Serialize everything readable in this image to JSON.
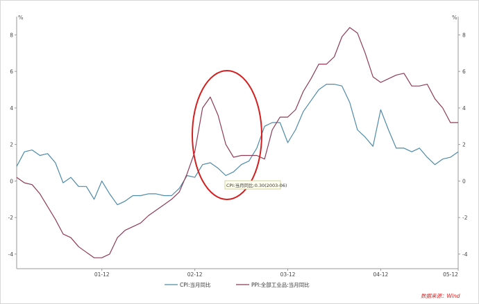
{
  "chart_data": {
    "type": "line",
    "y_unit_left": "%",
    "y_unit_right": "%",
    "ylim": [
      -4.8,
      9
    ],
    "yticks": [
      -4,
      -2,
      0,
      2,
      4,
      6,
      8
    ],
    "x_tick_labels": [
      "01-12",
      "02-12",
      "03-12",
      "04-12",
      "05-12"
    ],
    "grid": false,
    "legend_position": "bottom",
    "tooltip": "CPI:当月同比:0.30(2003-06)",
    "source_note": "数据来源：Wind",
    "colors": {
      "cpi": "#4e8aa9",
      "ppi": "#8e3a55",
      "ellipse": "#d31f1f",
      "source": "#e02020"
    },
    "series": [
      {
        "name": "CPI:当月同比",
        "values": [
          0.8,
          1.6,
          1.7,
          1.4,
          1.5,
          1.0,
          -0.1,
          0.2,
          -0.3,
          -0.3,
          -1.0,
          0.0,
          -0.7,
          -1.3,
          -1.1,
          -0.8,
          -0.8,
          -0.7,
          -0.7,
          -0.8,
          -0.8,
          -0.4,
          0.3,
          0.2,
          0.9,
          1.0,
          0.7,
          0.3,
          0.5,
          0.9,
          1.1,
          1.8,
          3.0,
          3.2,
          3.2,
          2.1,
          2.8,
          3.8,
          4.4,
          5.0,
          5.3,
          5.3,
          5.2,
          4.3,
          2.8,
          2.4,
          1.9,
          3.9,
          2.8,
          1.8,
          1.8,
          1.6,
          1.8,
          1.3,
          0.9,
          1.2,
          1.3,
          1.6
        ]
      },
      {
        "name": "PPI:全部工业品:当月同比",
        "values": [
          0.2,
          -0.1,
          -0.2,
          -0.7,
          -1.4,
          -2.1,
          -2.9,
          -3.1,
          -3.6,
          -3.9,
          -4.2,
          -4.2,
          -4.0,
          -3.1,
          -2.7,
          -2.5,
          -2.3,
          -1.9,
          -1.6,
          -1.3,
          -1.0,
          -0.6,
          0.4,
          1.6,
          4.0,
          4.6,
          3.6,
          2.0,
          1.3,
          1.4,
          1.4,
          1.4,
          1.2,
          2.8,
          3.5,
          3.5,
          3.9,
          4.9,
          5.6,
          6.4,
          6.4,
          6.8,
          7.9,
          8.4,
          8.1,
          7.0,
          5.7,
          5.4,
          5.6,
          5.8,
          5.9,
          5.2,
          5.2,
          5.3,
          4.5,
          4.0,
          3.2,
          3.2
        ]
      }
    ]
  }
}
